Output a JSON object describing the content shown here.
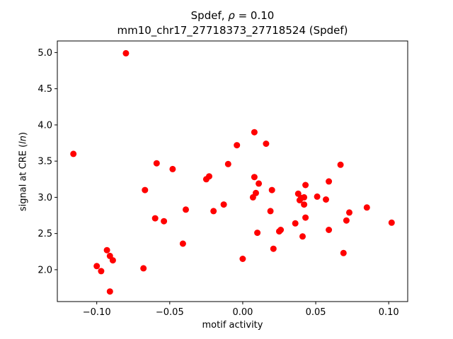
{
  "chart_data": {
    "type": "scatter",
    "title_prefix": "Spdef, ",
    "title_rho_symbol": "ρ",
    "title_rho_value": " = 0.10",
    "subtitle": "mm10_chr17_27718373_27718524 (Spdef)",
    "xlabel": "motif activity",
    "ylabel_prefix": "signal at CRE (",
    "ylabel_italic": "ln",
    "ylabel_suffix": ")",
    "xlim": [
      -0.127,
      0.113
    ],
    "ylim": [
      1.56,
      5.16
    ],
    "xticks": [
      {
        "value": -0.1,
        "label": "−0.10"
      },
      {
        "value": -0.05,
        "label": "−0.05"
      },
      {
        "value": 0.0,
        "label": "0.00"
      },
      {
        "value": 0.05,
        "label": "0.05"
      },
      {
        "value": 0.1,
        "label": "0.10"
      }
    ],
    "yticks": [
      {
        "value": 2.0,
        "label": "2.0"
      },
      {
        "value": 2.5,
        "label": "2.5"
      },
      {
        "value": 3.0,
        "label": "3.0"
      },
      {
        "value": 3.5,
        "label": "3.5"
      },
      {
        "value": 4.0,
        "label": "4.0"
      },
      {
        "value": 4.5,
        "label": "4.5"
      },
      {
        "value": 5.0,
        "label": "5.0"
      }
    ],
    "marker_color": "#ff0000",
    "grid": false,
    "points": [
      {
        "x": -0.08,
        "y": 4.99
      },
      {
        "x": -0.116,
        "y": 3.6
      },
      {
        "x": -0.1,
        "y": 2.05
      },
      {
        "x": -0.097,
        "y": 1.98
      },
      {
        "x": -0.093,
        "y": 2.27
      },
      {
        "x": -0.091,
        "y": 2.19
      },
      {
        "x": -0.089,
        "y": 2.13
      },
      {
        "x": -0.091,
        "y": 1.7
      },
      {
        "x": -0.068,
        "y": 2.02
      },
      {
        "x": -0.067,
        "y": 3.1
      },
      {
        "x": -0.06,
        "y": 2.71
      },
      {
        "x": -0.059,
        "y": 3.47
      },
      {
        "x": -0.054,
        "y": 2.67
      },
      {
        "x": -0.048,
        "y": 3.39
      },
      {
        "x": -0.041,
        "y": 2.36
      },
      {
        "x": -0.039,
        "y": 2.83
      },
      {
        "x": -0.025,
        "y": 3.25
      },
      {
        "x": -0.023,
        "y": 3.29
      },
      {
        "x": -0.02,
        "y": 2.81
      },
      {
        "x": -0.013,
        "y": 2.9
      },
      {
        "x": -0.01,
        "y": 3.46
      },
      {
        "x": -0.004,
        "y": 3.72
      },
      {
        "x": 0.0,
        "y": 2.15
      },
      {
        "x": 0.007,
        "y": 3.0
      },
      {
        "x": 0.008,
        "y": 3.28
      },
      {
        "x": 0.008,
        "y": 3.9
      },
      {
        "x": 0.009,
        "y": 3.06
      },
      {
        "x": 0.01,
        "y": 2.51
      },
      {
        "x": 0.011,
        "y": 3.19
      },
      {
        "x": 0.016,
        "y": 3.74
      },
      {
        "x": 0.019,
        "y": 2.81
      },
      {
        "x": 0.02,
        "y": 3.1
      },
      {
        "x": 0.021,
        "y": 2.29
      },
      {
        "x": 0.025,
        "y": 2.53
      },
      {
        "x": 0.026,
        "y": 2.55
      },
      {
        "x": 0.036,
        "y": 2.64
      },
      {
        "x": 0.038,
        "y": 3.05
      },
      {
        "x": 0.039,
        "y": 2.96
      },
      {
        "x": 0.04,
        "y": 2.99
      },
      {
        "x": 0.041,
        "y": 2.46
      },
      {
        "x": 0.042,
        "y": 2.9
      },
      {
        "x": 0.042,
        "y": 3.0
      },
      {
        "x": 0.043,
        "y": 2.72
      },
      {
        "x": 0.043,
        "y": 3.17
      },
      {
        "x": 0.051,
        "y": 3.01
      },
      {
        "x": 0.057,
        "y": 2.97
      },
      {
        "x": 0.059,
        "y": 2.55
      },
      {
        "x": 0.059,
        "y": 3.22
      },
      {
        "x": 0.067,
        "y": 3.45
      },
      {
        "x": 0.069,
        "y": 2.23
      },
      {
        "x": 0.071,
        "y": 2.68
      },
      {
        "x": 0.073,
        "y": 2.79
      },
      {
        "x": 0.085,
        "y": 2.86
      },
      {
        "x": 0.102,
        "y": 2.65
      }
    ]
  }
}
